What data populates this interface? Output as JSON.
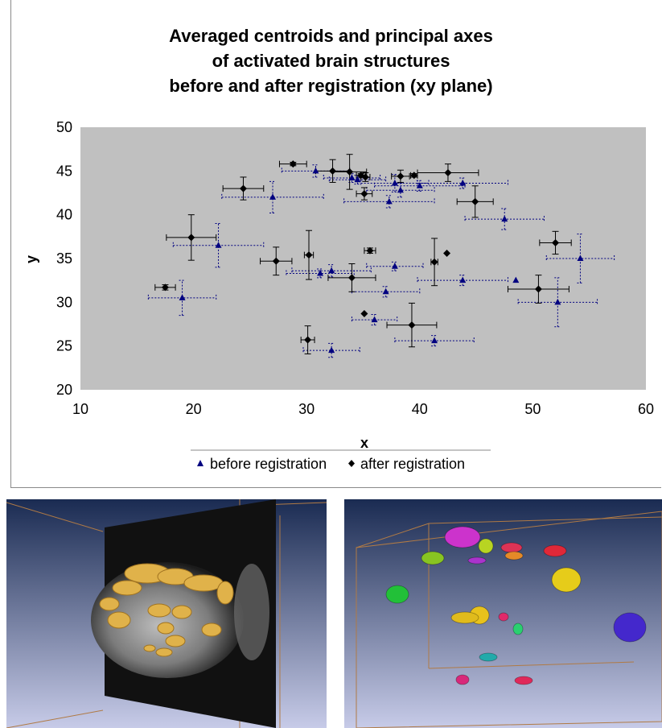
{
  "chart_data": {
    "type": "scatter",
    "title_lines": [
      "Averaged centroids and principal axes",
      "of activated brain structures",
      "before and after registration (xy plane)"
    ],
    "xlabel": "x",
    "ylabel": "y",
    "xlim": [
      10,
      60
    ],
    "ylim": [
      20,
      50
    ],
    "xticks": [
      10,
      20,
      30,
      40,
      50,
      60
    ],
    "yticks": [
      20,
      25,
      30,
      35,
      40,
      45,
      50
    ],
    "plot_background": "#c0c0c0",
    "grid": false,
    "legend_position": "bottom",
    "series": [
      {
        "name": "before registration",
        "marker": "triangle",
        "color": "#000080",
        "errorbar_style": "dotted",
        "points": [
          {
            "x": 30.8,
            "y": 45.0,
            "xerr": 3.0,
            "yerr": 0.7
          },
          {
            "x": 34.0,
            "y": 44.2,
            "xerr": 2.5,
            "yerr": 0.5
          },
          {
            "x": 34.5,
            "y": 44.0,
            "xerr": 2.5,
            "yerr": 0.5
          },
          {
            "x": 27.0,
            "y": 42.0,
            "xerr": 4.5,
            "yerr": 1.8
          },
          {
            "x": 37.8,
            "y": 43.6,
            "xerr": 3.0,
            "yerr": 1.0
          },
          {
            "x": 38.3,
            "y": 42.8,
            "xerr": 3.0,
            "yerr": 0.8
          },
          {
            "x": 40.0,
            "y": 43.3,
            "xerr": 4.0,
            "yerr": 0.6
          },
          {
            "x": 37.3,
            "y": 41.5,
            "xerr": 4.0,
            "yerr": 0.7
          },
          {
            "x": 43.8,
            "y": 43.6,
            "xerr": 4.0,
            "yerr": 0.6
          },
          {
            "x": 47.5,
            "y": 39.5,
            "xerr": 3.5,
            "yerr": 1.2
          },
          {
            "x": 22.2,
            "y": 36.5,
            "xerr": 4.0,
            "yerr": 2.5
          },
          {
            "x": 32.2,
            "y": 33.6,
            "xerr": 3.5,
            "yerr": 0.7
          },
          {
            "x": 31.2,
            "y": 33.3,
            "xerr": 3.0,
            "yerr": 0.5
          },
          {
            "x": 37.8,
            "y": 34.1,
            "xerr": 2.5,
            "yerr": 0.5
          },
          {
            "x": 43.8,
            "y": 32.5,
            "xerr": 4.0,
            "yerr": 0.6
          },
          {
            "x": 48.5,
            "y": 32.5,
            "xerr": 0,
            "yerr": 0
          },
          {
            "x": 54.2,
            "y": 35.0,
            "xerr": 3.0,
            "yerr": 2.8
          },
          {
            "x": 52.2,
            "y": 30.0,
            "xerr": 3.5,
            "yerr": 2.8
          },
          {
            "x": 37.0,
            "y": 31.2,
            "xerr": 3.0,
            "yerr": 0.6
          },
          {
            "x": 19.0,
            "y": 30.5,
            "xerr": 3.0,
            "yerr": 2.0
          },
          {
            "x": 36.0,
            "y": 28.0,
            "xerr": 2.0,
            "yerr": 0.6
          },
          {
            "x": 41.3,
            "y": 25.6,
            "xerr": 3.5,
            "yerr": 0.6
          },
          {
            "x": 32.2,
            "y": 24.5,
            "xerr": 2.5,
            "yerr": 0.8
          }
        ]
      },
      {
        "name": "after registration",
        "marker": "diamond",
        "color": "#000000",
        "errorbar_style": "solid",
        "points": [
          {
            "x": 28.8,
            "y": 45.8,
            "xerr": 1.2,
            "yerr": 0.2
          },
          {
            "x": 32.3,
            "y": 45.0,
            "xerr": 1.5,
            "yerr": 1.3
          },
          {
            "x": 33.8,
            "y": 44.9,
            "xerr": 1.5,
            "yerr": 2.0
          },
          {
            "x": 34.8,
            "y": 44.5,
            "xerr": 0.4,
            "yerr": 0.2
          },
          {
            "x": 35.2,
            "y": 44.3,
            "xerr": 0.4,
            "yerr": 0.5
          },
          {
            "x": 24.4,
            "y": 43.0,
            "xerr": 1.8,
            "yerr": 1.3
          },
          {
            "x": 38.3,
            "y": 44.4,
            "xerr": 0.8,
            "yerr": 0.7
          },
          {
            "x": 39.5,
            "y": 44.5,
            "xerr": 0.3,
            "yerr": 0.2
          },
          {
            "x": 42.5,
            "y": 44.8,
            "xerr": 2.7,
            "yerr": 1.0
          },
          {
            "x": 35.1,
            "y": 42.4,
            "xerr": 0.7,
            "yerr": 0.7
          },
          {
            "x": 44.9,
            "y": 41.5,
            "xerr": 1.6,
            "yerr": 1.8
          },
          {
            "x": 19.8,
            "y": 37.4,
            "xerr": 2.2,
            "yerr": 2.6
          },
          {
            "x": 52.0,
            "y": 36.8,
            "xerr": 1.4,
            "yerr": 1.3
          },
          {
            "x": 35.6,
            "y": 35.9,
            "xerr": 0.5,
            "yerr": 0.3
          },
          {
            "x": 27.3,
            "y": 34.7,
            "xerr": 1.4,
            "yerr": 1.6
          },
          {
            "x": 30.2,
            "y": 35.4,
            "xerr": 0.4,
            "yerr": 2.8
          },
          {
            "x": 42.4,
            "y": 35.6,
            "xerr": 0,
            "yerr": 0
          },
          {
            "x": 41.3,
            "y": 34.6,
            "xerr": 0.3,
            "yerr": 2.7
          },
          {
            "x": 34.0,
            "y": 32.8,
            "xerr": 2.1,
            "yerr": 1.6
          },
          {
            "x": 50.5,
            "y": 31.5,
            "xerr": 2.7,
            "yerr": 1.6
          },
          {
            "x": 17.5,
            "y": 31.7,
            "xerr": 0.9,
            "yerr": 0.3
          },
          {
            "x": 35.1,
            "y": 28.7,
            "xerr": 0,
            "yerr": 0
          },
          {
            "x": 39.3,
            "y": 27.4,
            "xerr": 2.2,
            "yerr": 2.5
          },
          {
            "x": 30.1,
            "y": 25.7,
            "xerr": 0.6,
            "yerr": 1.6
          }
        ]
      }
    ]
  },
  "colors": {
    "render_background_top": "#1a2b52",
    "render_background_bottom": "#c7cbe8",
    "isosurface": "#e0b24a",
    "box_edges": "#b07a45"
  }
}
